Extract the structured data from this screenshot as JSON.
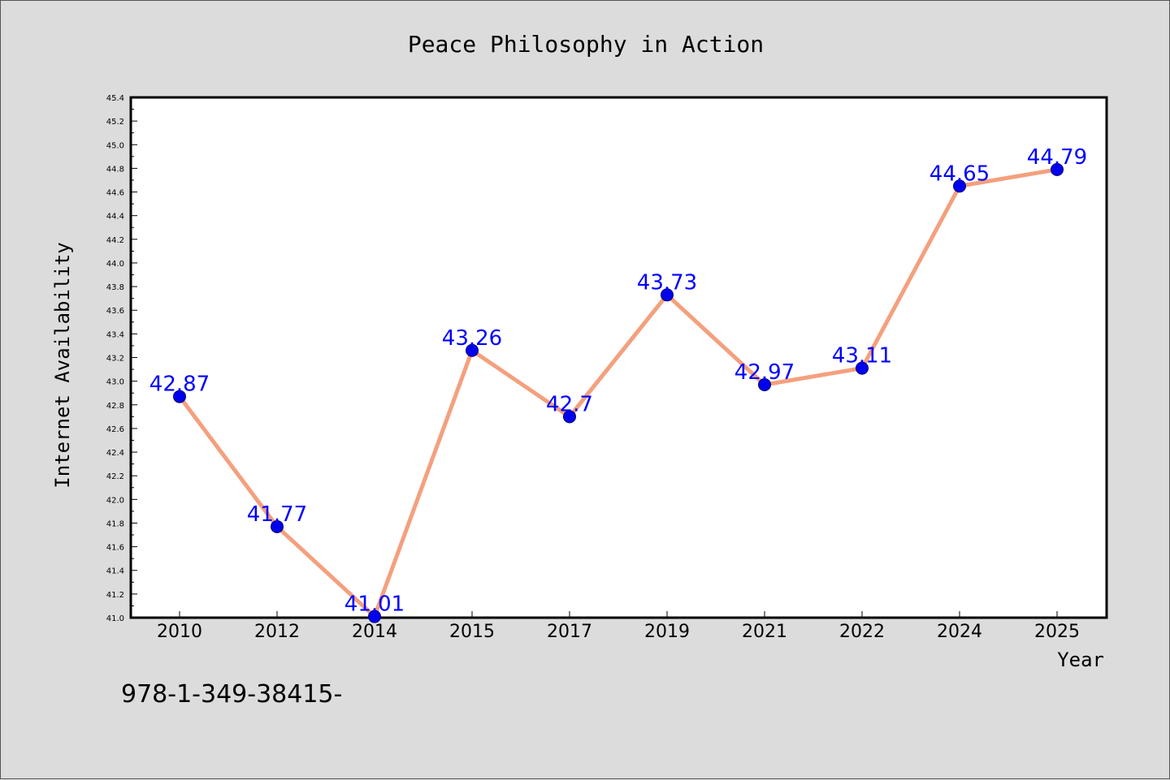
{
  "chart_data": {
    "type": "line",
    "title": "Peace Philosophy in Action",
    "xlabel": "Year",
    "ylabel": "Internet Availability",
    "categories": [
      "2010",
      "2012",
      "2014",
      "2015",
      "2017",
      "2019",
      "2021",
      "2022",
      "2024",
      "2025"
    ],
    "values": [
      42.87,
      41.77,
      41.01,
      43.26,
      42.7,
      43.73,
      42.97,
      43.11,
      44.65,
      44.79
    ],
    "data_labels": [
      "42.87",
      "41.77",
      "41.01",
      "43.26",
      "42.7",
      "43.73",
      "42.97",
      "43.11",
      "44.65",
      "44.79"
    ],
    "ylim": [
      41.0,
      45.4
    ],
    "yticks": [
      "41.0",
      "41.2",
      "41.4",
      "41.6",
      "41.8",
      "42.0",
      "42.2",
      "42.4",
      "42.6",
      "42.8",
      "43.0",
      "43.2",
      "43.4",
      "43.6",
      "43.8",
      "44.0",
      "44.2",
      "44.4",
      "44.6",
      "44.8",
      "45.0",
      "45.2",
      "45.4"
    ],
    "grid": false,
    "line_color": "#f4a07e",
    "marker_color": "#0000ee",
    "label_color": "#0000ff",
    "plot_background": "#ffffff",
    "figure_background": "#dcdcdc"
  },
  "footer": {
    "isbn": "978-1-349-38415-"
  }
}
